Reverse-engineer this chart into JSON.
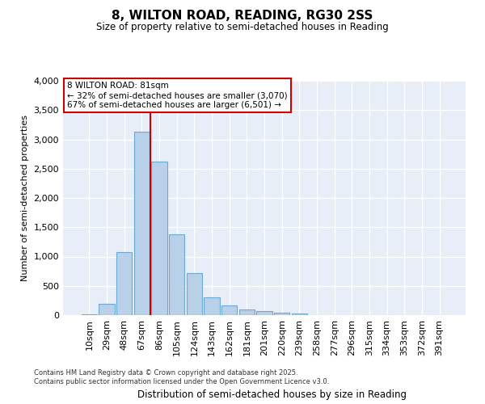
{
  "title": "8, WILTON ROAD, READING, RG30 2SS",
  "subtitle": "Size of property relative to semi-detached houses in Reading",
  "xlabel": "Distribution of semi-detached houses by size in Reading",
  "ylabel": "Number of semi-detached properties",
  "categories": [
    "10sqm",
    "29sqm",
    "48sqm",
    "67sqm",
    "86sqm",
    "105sqm",
    "124sqm",
    "143sqm",
    "162sqm",
    "181sqm",
    "201sqm",
    "220sqm",
    "239sqm",
    "258sqm",
    "277sqm",
    "296sqm",
    "315sqm",
    "334sqm",
    "353sqm",
    "372sqm",
    "391sqm"
  ],
  "values": [
    15,
    200,
    1080,
    3130,
    2620,
    1380,
    720,
    300,
    170,
    100,
    65,
    40,
    25,
    0,
    0,
    0,
    0,
    0,
    0,
    0,
    0
  ],
  "bar_color": "#b8d0e8",
  "bar_edge_color": "#6aaad4",
  "property_label": "8 WILTON ROAD: 81sqm",
  "smaller_pct": 32,
  "smaller_count": 3070,
  "larger_pct": 67,
  "larger_count": 6501,
  "vline_x": 3.5,
  "vline_color": "#cc0000",
  "ylim": [
    0,
    4000
  ],
  "yticks": [
    0,
    500,
    1000,
    1500,
    2000,
    2500,
    3000,
    3500,
    4000
  ],
  "bg_color": "#e8eef8",
  "footer1": "Contains HM Land Registry data © Crown copyright and database right 2025.",
  "footer2": "Contains public sector information licensed under the Open Government Licence v3.0."
}
